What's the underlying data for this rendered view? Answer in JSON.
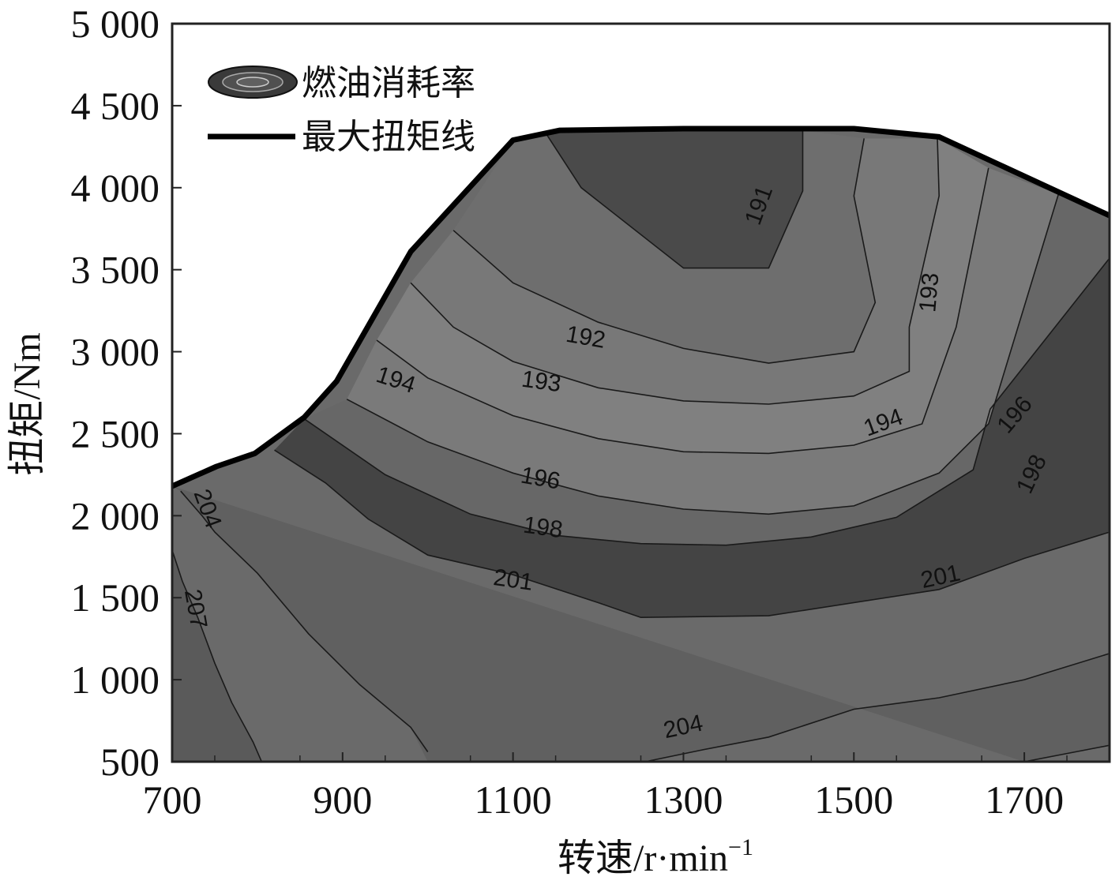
{
  "chart_data": {
    "type": "contour",
    "xlabel": "转速/r·min",
    "xlabel_sup": "−1",
    "ylabel": "扭矩/Nm",
    "xlim": [
      700,
      1800
    ],
    "ylim": [
      500,
      5000
    ],
    "x_ticks": [
      700,
      900,
      1100,
      1300,
      1500,
      1700
    ],
    "x_tick_labels": [
      "700",
      "900",
      "1100",
      "1300",
      "1500",
      "1700"
    ],
    "y_ticks": [
      500,
      1000,
      1500,
      2000,
      2500,
      3000,
      3500,
      4000,
      4500,
      5000
    ],
    "y_tick_labels": [
      "500",
      "1 000",
      "1 500",
      "2 000",
      "2 500",
      "3 000",
      "3 500",
      "4 000",
      "4 500",
      "5 000"
    ],
    "legend": {
      "placement": "top-left",
      "entries": [
        "燃油消耗率",
        "最大扭矩线"
      ]
    },
    "max_torque_line": {
      "x": [
        700,
        752,
        797,
        855,
        893,
        980,
        1100,
        1155,
        1300,
        1500,
        1600,
        1800
      ],
      "y": [
        2180,
        2300,
        2380,
        2600,
        2820,
        3610,
        4290,
        4350,
        4360,
        4360,
        4310,
        3830
      ]
    },
    "contour_levels": [
      {
        "value": 191,
        "label": "191",
        "label_at": [
          1390,
          3890
        ],
        "label_angle": -70,
        "x": [
          1140,
          1180,
          1300,
          1400,
          1440,
          1440
        ],
        "y": [
          4320,
          4000,
          3510,
          3510,
          3980,
          4350
        ]
      },
      {
        "value": 192,
        "label": "192",
        "label_at": [
          1185,
          3080
        ],
        "label_angle": 10,
        "x": [
          1030,
          1100,
          1200,
          1300,
          1400,
          1500,
          1525,
          1500,
          1512
        ],
        "y": [
          3740,
          3420,
          3180,
          3020,
          2930,
          3000,
          3300,
          3950,
          4300
        ]
      },
      {
        "value": 193,
        "label": "193",
        "label_at": [
          1133,
          2810
        ],
        "label_angle": 8,
        "x": [
          980,
          1030,
          1100,
          1200,
          1300,
          1400,
          1500,
          1565,
          1565,
          1600,
          1598
        ],
        "y": [
          3420,
          3150,
          2940,
          2780,
          2700,
          2680,
          2730,
          2880,
          3150,
          3950,
          4300
        ],
        "label2": "193",
        "label2_at": [
          1590,
          3360
        ],
        "label2_angle": -85
      },
      {
        "value": 194,
        "label": "194",
        "label_at": [
          962,
          2820
        ],
        "label_angle": 18,
        "x": [
          940,
          1000,
          1100,
          1200,
          1300,
          1400,
          1500,
          1580,
          1620,
          1658
        ],
        "y": [
          3070,
          2840,
          2610,
          2470,
          2390,
          2380,
          2430,
          2560,
          3150,
          4120
        ],
        "label2": "194",
        "label2_at": [
          1535,
          2560
        ],
        "label2_angle": -20
      },
      {
        "value": 196,
        "label": "196",
        "label_at": [
          1132,
          2220
        ],
        "label_angle": 10,
        "x": [
          905,
          1000,
          1100,
          1200,
          1300,
          1400,
          1500,
          1600,
          1658,
          1740
        ],
        "y": [
          2710,
          2450,
          2260,
          2120,
          2040,
          2010,
          2060,
          2260,
          2560,
          3960
        ],
        "label2": "196",
        "label2_at": [
          1690,
          2610
        ],
        "label2_angle": -50
      },
      {
        "value": 198,
        "label": "198",
        "label_at": [
          1135,
          1920
        ],
        "label_angle": 8,
        "x": [
          855,
          950,
          1050,
          1150,
          1250,
          1350,
          1450,
          1550,
          1640,
          1660,
          1800
        ],
        "y": [
          2590,
          2250,
          2010,
          1880,
          1830,
          1820,
          1870,
          1990,
          2280,
          2650,
          3570
        ],
        "label2": "198",
        "label2_at": [
          1710,
          2250
        ],
        "label2_angle": -65
      },
      {
        "value": 201,
        "label": "201",
        "label_at": [
          1100,
          1600
        ],
        "label_angle": 8,
        "x": [
          820,
          880,
          930,
          1000,
          1100,
          1200,
          1250,
          1400,
          1600,
          1700,
          1800
        ],
        "y": [
          2400,
          2200,
          1980,
          1760,
          1640,
          1470,
          1380,
          1390,
          1550,
          1740,
          1900
        ],
        "label2": "201",
        "label2_at": [
          1602,
          1620
        ],
        "label2_angle": -12
      },
      {
        "value": 204,
        "label": "204",
        "label_at": [
          1300,
          705
        ],
        "label_angle": -12,
        "x": [
          710,
          735,
          750,
          800,
          860,
          920,
          980,
          1000
        ],
        "y": [
          2150,
          2000,
          1900,
          1650,
          1280,
          970,
          710,
          560
        ],
        "x2": [
          1255,
          1320,
          1400,
          1500,
          1600,
          1700,
          1800
        ],
        "y2": [
          500,
          570,
          650,
          820,
          890,
          1000,
          1160
        ],
        "label2": "204",
        "label2_at": [
          740,
          2040
        ],
        "label2_angle": 70
      },
      {
        "value": 207,
        "label": "207",
        "label_at": [
          726,
          1430
        ],
        "label_angle": 80,
        "x": [
          700,
          712,
          730,
          750,
          770,
          795,
          805
        ],
        "y": [
          1790,
          1600,
          1380,
          1100,
          860,
          620,
          500
        ],
        "x2": [
          1700,
          1780,
          1800
        ],
        "y2": [
          500,
          580,
          600
        ]
      }
    ],
    "regions": [
      {
        "fill": "#606060",
        "x": [
          700,
          710,
          735,
          750,
          800,
          860,
          920,
          980,
          1000,
          1255,
          1320,
          1400,
          1500,
          1600,
          1700,
          1800,
          1800,
          1780,
          1700
        ],
        "y": [
          2180,
          2150,
          2000,
          1900,
          1650,
          1280,
          970,
          710,
          500,
          500,
          570,
          650,
          820,
          890,
          1000,
          1160,
          600,
          580,
          500
        ]
      },
      {
        "fill": "#5a5a5a",
        "x": [
          700,
          712,
          730,
          750,
          770,
          795,
          805,
          700
        ],
        "y": [
          1790,
          1600,
          1380,
          1100,
          860,
          620,
          500,
          500
        ]
      },
      {
        "fill": "#444444",
        "x": [
          855,
          950,
          1050,
          1150,
          1250,
          1350,
          1450,
          1550,
          1640,
          1660,
          1800,
          1800,
          1700,
          1600,
          1400,
          1250,
          1200,
          1100,
          1000,
          930,
          880,
          820
        ],
        "y": [
          2590,
          2250,
          2010,
          1880,
          1830,
          1820,
          1870,
          1990,
          2280,
          2650,
          3570,
          1900,
          1740,
          1550,
          1390,
          1380,
          1470,
          1640,
          1760,
          1980,
          2200,
          2400
        ]
      },
      {
        "fill": "#676767",
        "x": [
          905,
          1000,
          1100,
          1200,
          1300,
          1400,
          1500,
          1600,
          1658,
          1740,
          1800,
          1800,
          1660,
          1640,
          1550,
          1450,
          1350,
          1250,
          1150,
          1050,
          950,
          855
        ],
        "y": [
          2710,
          2450,
          2260,
          2120,
          2040,
          2010,
          2060,
          2260,
          2560,
          3960,
          3830,
          3570,
          2650,
          2280,
          1990,
          1870,
          1820,
          1830,
          1880,
          2010,
          2250,
          2590
        ]
      },
      {
        "fill": "#7a7a7a",
        "x": [
          940,
          1000,
          1100,
          1200,
          1300,
          1400,
          1500,
          1580,
          1620,
          1658,
          1740,
          1658,
          1600,
          1500,
          1400,
          1300,
          1200,
          1100,
          1000,
          905
        ],
        "y": [
          3070,
          2840,
          2610,
          2470,
          2390,
          2380,
          2430,
          2560,
          3150,
          4120,
          3960,
          2560,
          2260,
          2060,
          2010,
          2040,
          2120,
          2260,
          2450,
          2710
        ]
      },
      {
        "fill": "#808080",
        "x": [
          980,
          1030,
          1100,
          1200,
          1300,
          1400,
          1500,
          1565,
          1565,
          1600,
          1598,
          1658,
          1620,
          1580,
          1500,
          1400,
          1300,
          1200,
          1100,
          1000,
          940
        ],
        "y": [
          3420,
          3150,
          2940,
          2780,
          2700,
          2680,
          2730,
          2880,
          3150,
          3950,
          4300,
          4120,
          3150,
          2560,
          2430,
          2380,
          2390,
          2470,
          2610,
          2840,
          3070
        ]
      },
      {
        "fill": "#787878",
        "x": [
          1030,
          1100,
          1200,
          1300,
          1400,
          1500,
          1525,
          1500,
          1512,
          1598,
          1600,
          1565,
          1565,
          1500,
          1400,
          1300,
          1200,
          1100,
          1030,
          980
        ],
        "y": [
          3740,
          3420,
          3180,
          3020,
          2930,
          3000,
          3300,
          3950,
          4300,
          4300,
          3950,
          3150,
          2880,
          2730,
          2680,
          2700,
          2780,
          2940,
          3150,
          3420
        ]
      },
      {
        "fill": "#6e6e6e",
        "x": [
          1100,
          1140,
          1180,
          1300,
          1400,
          1440,
          1440,
          1512,
          1500,
          1525,
          1500,
          1400,
          1300,
          1200,
          1100,
          1030
        ],
        "y": [
          4290,
          4320,
          4000,
          3510,
          3510,
          3980,
          4350,
          4300,
          3950,
          3300,
          3000,
          2930,
          3020,
          3180,
          3420,
          3740
        ]
      },
      {
        "fill": "#4a4a4a",
        "x": [
          1140,
          1180,
          1300,
          1400,
          1440,
          1440,
          1300,
          1155
        ],
        "y": [
          4320,
          4000,
          3510,
          3510,
          3980,
          4350,
          4360,
          4350
        ]
      }
    ]
  }
}
